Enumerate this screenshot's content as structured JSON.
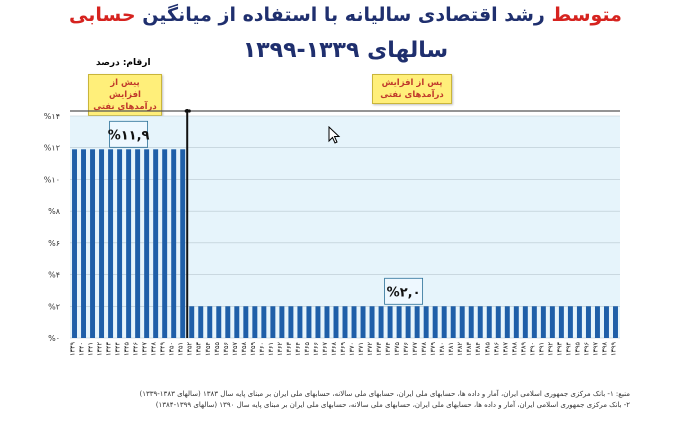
{
  "title_line1_red": "متوسط",
  "title_line1_rest": "رشد اقتصادی سالیانه با استفاده از میانگین",
  "title_line1_red2": "حسابی",
  "title_line2": "سالهای ۱۳۳۹-۱۳۹۹",
  "units_label": "ارقام: درصد",
  "tag_before": "پیش از افزایش درآمدهای نفتی",
  "tag_after": "پس از افزایش درآمدهای نفتی",
  "notes": [
    "منبع: ۱- بانک مرکزی جمهوری اسلامی ایران، آمار و داده ها، حسابهای ملی ایران، حسابهای ملی سالانه، حسابهای ملی ایران بر مبنای پایه سال ۱۳۸۳ (سالهای ۱۳۸۳-۱۳۳۹)",
    "۲- بانک مرکزی جمهوری اسلامی ایران، آمار و داده ها، حسابهای ملی ایران، حسابهای ملی سالانه، حسابهای ملی ایران بر مبنای پایه سال ۱۳۹۰ (سالهای ۱۳۹۹-۱۳۸۴)"
  ],
  "colors": {
    "bar": "#1f5fa8",
    "plot_band": "#e6f4fb",
    "title_blue": "#1f2f6e",
    "title_red": "#d6231f",
    "tag_fill": "#ffef7a"
  },
  "chart_data": {
    "type": "bar",
    "categories": [
      "۱۳۳۹",
      "۱۳۴۰",
      "۱۳۴۱",
      "۱۳۴۲",
      "۱۳۴۳",
      "۱۳۴۴",
      "۱۳۴۵",
      "۱۳۴۶",
      "۱۳۴۷",
      "۱۳۴۸",
      "۱۳۴۹",
      "۱۳۵۰",
      "۱۳۵۱",
      "۱۳۵۲",
      "۱۳۵۳",
      "۱۳۵۴",
      "۱۳۵۵",
      "۱۳۵۶",
      "۱۳۵۷",
      "۱۳۵۸",
      "۱۳۵۹",
      "۱۳۶۰",
      "۱۳۶۱",
      "۱۳۶۲",
      "۱۳۶۳",
      "۱۳۶۴",
      "۱۳۶۵",
      "۱۳۶۶",
      "۱۳۶۷",
      "۱۳۶۸",
      "۱۳۶۹",
      "۱۳۷۰",
      "۱۳۷۱",
      "۱۳۷۲",
      "۱۳۷۳",
      "۱۳۷۴",
      "۱۳۷۵",
      "۱۳۷۶",
      "۱۳۷۷",
      "۱۳۷۸",
      "۱۳۷۹",
      "۱۳۸۰",
      "۱۳۸۱",
      "۱۳۸۲",
      "۱۳۸۳",
      "۱۳۸۴",
      "۱۳۸۵",
      "۱۳۸۶",
      "۱۳۸۷",
      "۱۳۸۸",
      "۱۳۸۹",
      "۱۳۹۰",
      "۱۳۹۱",
      "۱۳۹۲",
      "۱۳۹۳",
      "۱۳۹۴",
      "۱۳۹۵",
      "۱۳۹۶",
      "۱۳۹۷",
      "۱۳۹۸",
      "۱۳۹۹"
    ],
    "values": [
      11.9,
      11.9,
      11.9,
      11.9,
      11.9,
      11.9,
      11.9,
      11.9,
      11.9,
      11.9,
      11.9,
      11.9,
      11.9,
      2.0,
      2.0,
      2.0,
      2.0,
      2.0,
      2.0,
      2.0,
      2.0,
      2.0,
      2.0,
      2.0,
      2.0,
      2.0,
      2.0,
      2.0,
      2.0,
      2.0,
      2.0,
      2.0,
      2.0,
      2.0,
      2.0,
      2.0,
      2.0,
      2.0,
      2.0,
      2.0,
      2.0,
      2.0,
      2.0,
      2.0,
      2.0,
      2.0,
      2.0,
      2.0,
      2.0,
      2.0,
      2.0,
      2.0,
      2.0,
      2.0,
      2.0,
      2.0,
      2.0,
      2.0,
      2.0,
      2.0,
      2.0
    ],
    "ylim": [
      0,
      14
    ],
    "yticks": [
      0,
      2,
      4,
      6,
      8,
      10,
      12,
      14
    ],
    "ytick_labels": [
      "%۰",
      "%۲",
      "%۴",
      "%۶",
      "%۸",
      "%۱۰",
      "%۱۲",
      "%۱۴"
    ],
    "split_after": "۱۳۵۱",
    "annotations": [
      {
        "text": "%۱۱,۹",
        "segment": "before",
        "value": 11.9
      },
      {
        "text": "%۲,۰",
        "segment": "after",
        "value": 2.0
      }
    ],
    "grid": true,
    "title": "",
    "xlabel": "",
    "ylabel": ""
  }
}
